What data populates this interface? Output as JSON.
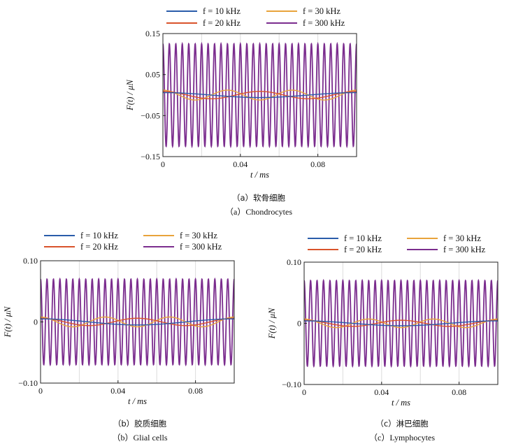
{
  "chart_data": [
    {
      "type": "line",
      "panel": "a",
      "xlabel": "t / ms",
      "ylabel": "F(t) / μN",
      "xlim": [
        0,
        0.1
      ],
      "ylim": [
        -0.15,
        0.15
      ],
      "xticks": [
        0,
        0.04,
        0.08
      ],
      "xtick_labels": [
        "0",
        "0.04",
        "0.08"
      ],
      "yticks": [
        -0.15,
        -0.05,
        0.05,
        0.15
      ],
      "ytick_labels": [
        "−0.15",
        "−0.05",
        "0.05",
        "0.15"
      ],
      "grid": "vertical",
      "legend_position": "top",
      "series": [
        {
          "name": "f = 10 kHz",
          "freq_khz": 10,
          "amplitude": 0.006,
          "color": "#2a5caa"
        },
        {
          "name": "f = 30 kHz",
          "freq_khz": 30,
          "amplitude": 0.012,
          "color": "#e8a33b"
        },
        {
          "name": "f = 20 kHz",
          "freq_khz": 20,
          "amplitude": 0.009,
          "color": "#d9532b"
        },
        {
          "name": "f = 300 kHz",
          "freq_khz": 300,
          "amplitude": 0.125,
          "color": "#7b2d8e"
        }
      ],
      "caption_zh": "（a）软骨细胞",
      "caption_en": "（a）Chondrocytes"
    },
    {
      "type": "line",
      "panel": "b",
      "xlabel": "t / ms",
      "ylabel": "F(t) / μN",
      "xlim": [
        0,
        0.1
      ],
      "ylim": [
        -0.1,
        0.1
      ],
      "xticks": [
        0,
        0.04,
        0.08
      ],
      "xtick_labels": [
        "0",
        "0.04",
        "0.08"
      ],
      "yticks": [
        -0.1,
        0,
        0.1
      ],
      "ytick_labels": [
        "−0.10",
        "0",
        "0.10"
      ],
      "grid": "vertical",
      "legend_position": "top",
      "series": [
        {
          "name": "f = 10 kHz",
          "freq_khz": 10,
          "amplitude": 0.005,
          "color": "#2a5caa"
        },
        {
          "name": "f = 30 kHz",
          "freq_khz": 30,
          "amplitude": 0.008,
          "color": "#e8a33b"
        },
        {
          "name": "f = 20 kHz",
          "freq_khz": 20,
          "amplitude": 0.006,
          "color": "#d9532b"
        },
        {
          "name": "f = 300 kHz",
          "freq_khz": 300,
          "amplitude": 0.07,
          "color": "#7b2d8e"
        }
      ],
      "caption_zh": "（b）胶质细胞",
      "caption_en": "（b）Glial cells"
    },
    {
      "type": "line",
      "panel": "c",
      "xlabel": "t / ms",
      "ylabel": "F(t) / μN",
      "xlim": [
        0,
        0.1
      ],
      "ylim": [
        -0.1,
        0.1
      ],
      "xticks": [
        0,
        0.04,
        0.08
      ],
      "xtick_labels": [
        "0",
        "0.04",
        "0.08"
      ],
      "yticks": [
        -0.1,
        0,
        0.1
      ],
      "ytick_labels": [
        "−0.10",
        "0",
        "0.10"
      ],
      "grid": "vertical",
      "legend_position": "top",
      "series": [
        {
          "name": "f = 10 kHz",
          "freq_khz": 10,
          "amplitude": 0.004,
          "color": "#2a5caa"
        },
        {
          "name": "f = 30 kHz",
          "freq_khz": 30,
          "amplitude": 0.007,
          "color": "#e8a33b"
        },
        {
          "name": "f = 20 kHz",
          "freq_khz": 20,
          "amplitude": 0.005,
          "color": "#d9532b"
        },
        {
          "name": "f = 300 kHz",
          "freq_khz": 300,
          "amplitude": 0.07,
          "color": "#7b2d8e"
        }
      ],
      "caption_zh": "（c）淋巴细胞",
      "caption_en": "（c）Lymphocytes"
    }
  ]
}
